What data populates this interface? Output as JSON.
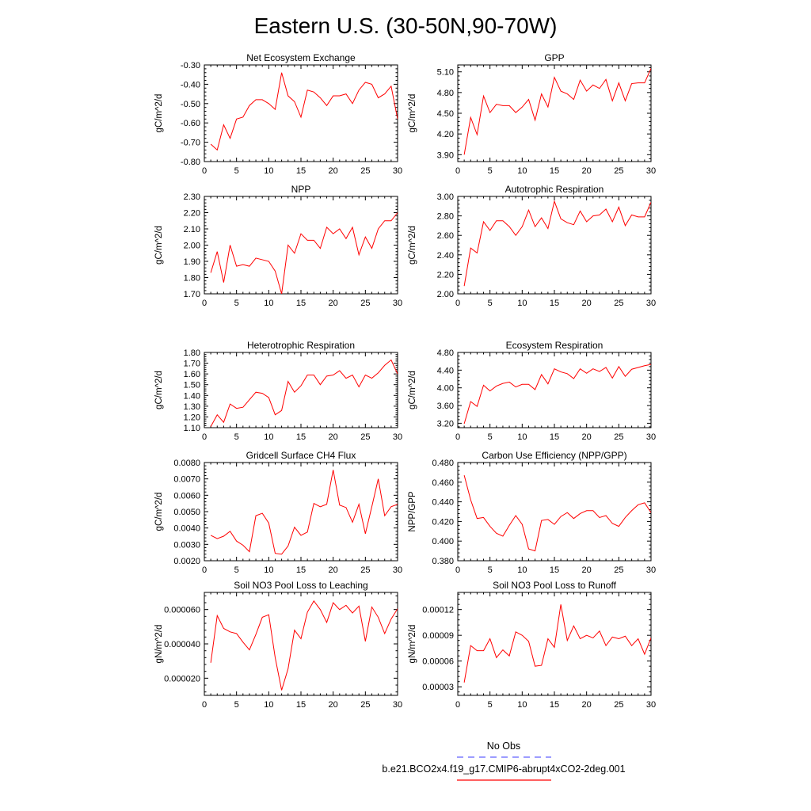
{
  "figure": {
    "title": "Eastern U.S. (30-50N,90-70W)"
  },
  "legend": {
    "obs_label": "No Obs",
    "obs_color": "#6060ff",
    "model_label": "b.e21.BCO2x4.f19_g17.CMIP6-abrupt4xCO2-2deg.001",
    "model_color": "#ff0000"
  },
  "chart_data": [
    {
      "type": "line",
      "title": "Net Ecosystem Exchange",
      "ylabel": "gC/m^2/d",
      "xlim": [
        0,
        30
      ],
      "ylim": [
        -0.8,
        -0.3
      ],
      "xticks": [
        0,
        5,
        10,
        15,
        20,
        25,
        30
      ],
      "yticks": [
        "-0.80",
        "-0.70",
        "-0.60",
        "-0.50",
        "-0.40",
        "-0.30"
      ],
      "series": [
        {
          "values": [
            -0.71,
            -0.74,
            -0.61,
            -0.68,
            -0.58,
            -0.57,
            -0.51,
            -0.48,
            -0.48,
            -0.5,
            -0.53,
            -0.34,
            -0.46,
            -0.49,
            -0.57,
            -0.43,
            -0.44,
            -0.47,
            -0.51,
            -0.46,
            -0.46,
            -0.45,
            -0.5,
            -0.43,
            -0.39,
            -0.4,
            -0.47,
            -0.45,
            -0.41,
            -0.58
          ]
        }
      ]
    },
    {
      "type": "line",
      "title": "GPP",
      "ylabel": "gC/m^2/d",
      "xlim": [
        0,
        30
      ],
      "ylim": [
        3.8,
        5.2
      ],
      "xticks": [
        0,
        5,
        10,
        15,
        20,
        25,
        30
      ],
      "yticks": [
        "3.90",
        "4.20",
        "4.50",
        "4.80",
        "5.10"
      ],
      "series": [
        {
          "values": [
            3.9,
            4.44,
            4.19,
            4.75,
            4.51,
            4.63,
            4.61,
            4.61,
            4.51,
            4.59,
            4.7,
            4.4,
            4.78,
            4.59,
            5.02,
            4.82,
            4.78,
            4.7,
            4.98,
            4.82,
            4.91,
            4.86,
            4.99,
            4.68,
            4.94,
            4.68,
            4.93,
            4.94,
            4.94,
            5.15
          ]
        }
      ]
    },
    {
      "type": "line",
      "title": "NPP",
      "ylabel": "gC/m^2/d",
      "xlim": [
        0,
        30
      ],
      "ylim": [
        1.7,
        2.3
      ],
      "xticks": [
        0,
        5,
        10,
        15,
        20,
        25,
        30
      ],
      "yticks": [
        "1.70",
        "1.80",
        "1.90",
        "2.00",
        "2.10",
        "2.20",
        "2.30"
      ],
      "series": [
        {
          "values": [
            1.83,
            1.96,
            1.77,
            2.0,
            1.87,
            1.88,
            1.87,
            1.92,
            1.91,
            1.9,
            1.84,
            1.7,
            2.0,
            1.95,
            2.07,
            2.03,
            2.03,
            1.98,
            2.11,
            2.07,
            2.1,
            2.04,
            2.11,
            1.94,
            2.05,
            1.98,
            2.1,
            2.15,
            2.15,
            2.2
          ]
        }
      ]
    },
    {
      "type": "line",
      "title": "Autotrophic Respiration",
      "ylabel": "gC/m^2/d",
      "xlim": [
        0,
        30
      ],
      "ylim": [
        2.0,
        3.0
      ],
      "xticks": [
        0,
        5,
        10,
        15,
        20,
        25,
        30
      ],
      "yticks": [
        "2.00",
        "2.20",
        "2.40",
        "2.60",
        "2.80",
        "3.00"
      ],
      "series": [
        {
          "values": [
            2.08,
            2.47,
            2.42,
            2.74,
            2.65,
            2.75,
            2.75,
            2.69,
            2.6,
            2.69,
            2.86,
            2.69,
            2.78,
            2.67,
            2.95,
            2.77,
            2.73,
            2.71,
            2.85,
            2.74,
            2.8,
            2.81,
            2.87,
            2.74,
            2.89,
            2.7,
            2.81,
            2.79,
            2.79,
            2.94
          ]
        }
      ]
    },
    {
      "type": "line",
      "title": "Heterotrophic Respiration",
      "ylabel": "gC/m^2/d",
      "xlim": [
        0,
        30
      ],
      "ylim": [
        1.1,
        1.8
      ],
      "xticks": [
        0,
        5,
        10,
        15,
        20,
        25,
        30
      ],
      "yticks": [
        "1.10",
        "1.20",
        "1.30",
        "1.40",
        "1.50",
        "1.60",
        "1.70",
        "1.80"
      ],
      "series": [
        {
          "values": [
            1.11,
            1.22,
            1.15,
            1.32,
            1.28,
            1.29,
            1.36,
            1.43,
            1.42,
            1.38,
            1.22,
            1.26,
            1.53,
            1.43,
            1.49,
            1.59,
            1.59,
            1.5,
            1.58,
            1.59,
            1.63,
            1.56,
            1.59,
            1.48,
            1.59,
            1.56,
            1.61,
            1.68,
            1.73,
            1.6
          ]
        }
      ]
    },
    {
      "type": "line",
      "title": "Ecosystem Respiration",
      "ylabel": "gC/m^2/d",
      "xlim": [
        0,
        30
      ],
      "ylim": [
        3.1,
        4.8
      ],
      "xticks": [
        0,
        5,
        10,
        15,
        20,
        25,
        30
      ],
      "yticks": [
        "3.20",
        "3.60",
        "4.00",
        "4.40",
        "4.80"
      ],
      "series": [
        {
          "values": [
            3.19,
            3.69,
            3.58,
            4.06,
            3.93,
            4.04,
            4.1,
            4.13,
            4.02,
            4.08,
            4.08,
            3.96,
            4.3,
            4.09,
            4.43,
            4.36,
            4.32,
            4.21,
            4.43,
            4.33,
            4.43,
            4.37,
            4.46,
            4.22,
            4.48,
            4.26,
            4.42,
            4.46,
            4.5,
            4.53
          ]
        }
      ]
    },
    {
      "type": "line",
      "title": "Gridcell Surface CH4 Flux",
      "ylabel": "gC/m^2/d",
      "xlim": [
        0,
        30
      ],
      "ylim": [
        0.002,
        0.008
      ],
      "xticks": [
        0,
        5,
        10,
        15,
        20,
        25,
        30
      ],
      "yticks": [
        "0.0020",
        "0.0030",
        "0.0040",
        "0.0050",
        "0.0060",
        "0.0070",
        "0.0080"
      ],
      "series": [
        {
          "values": [
            0.00355,
            0.00335,
            0.0035,
            0.0038,
            0.0032,
            0.00295,
            0.00255,
            0.00475,
            0.0049,
            0.0043,
            0.00245,
            0.0024,
            0.0029,
            0.00405,
            0.00355,
            0.00375,
            0.0055,
            0.0053,
            0.00545,
            0.00755,
            0.0054,
            0.00525,
            0.00435,
            0.00545,
            0.00365,
            0.0053,
            0.007,
            0.00475,
            0.0053,
            0.00545
          ]
        }
      ]
    },
    {
      "type": "line",
      "title": "Carbon Use Efficiency (NPP/GPP)",
      "ylabel": "NPP/GPP",
      "xlim": [
        0,
        30
      ],
      "ylim": [
        0.38,
        0.48
      ],
      "xticks": [
        0,
        5,
        10,
        15,
        20,
        25,
        30
      ],
      "yticks": [
        "0.380",
        "0.400",
        "0.420",
        "0.440",
        "0.460",
        "0.480"
      ],
      "series": [
        {
          "values": [
            0.467,
            0.442,
            0.423,
            0.424,
            0.415,
            0.408,
            0.405,
            0.416,
            0.426,
            0.417,
            0.392,
            0.39,
            0.421,
            0.422,
            0.417,
            0.425,
            0.429,
            0.423,
            0.428,
            0.431,
            0.431,
            0.424,
            0.426,
            0.418,
            0.415,
            0.424,
            0.431,
            0.437,
            0.439,
            0.429
          ]
        }
      ]
    },
    {
      "type": "line",
      "title": "Soil NO3 Pool Loss to Leaching",
      "ylabel": "gN/m^2/d",
      "xlim": [
        0,
        30
      ],
      "ylim": [
        1e-05,
        7e-05
      ],
      "xticks": [
        0,
        5,
        10,
        15,
        20,
        25,
        30
      ],
      "yticks": [
        "0.000020",
        "0.000040",
        "0.000060"
      ],
      "series": [
        {
          "values": [
            2.9e-05,
            5.65e-05,
            4.9e-05,
            4.7e-05,
            4.6e-05,
            4.1e-05,
            3.65e-05,
            4.55e-05,
            5.55e-05,
            5.7e-05,
            3.2e-05,
            1.3e-05,
            2.55e-05,
            4.8e-05,
            4.3e-05,
            5.85e-05,
            6.5e-05,
            6e-05,
            5.25e-05,
            6.4e-05,
            6e-05,
            6.25e-05,
            5.8e-05,
            6.2e-05,
            4.15e-05,
            6.15e-05,
            5.55e-05,
            4.6e-05,
            5.45e-05,
            6.05e-05
          ]
        }
      ]
    },
    {
      "type": "line",
      "title": "Soil NO3 Pool Loss to Runoff",
      "ylabel": "gN/m^2/d",
      "xlim": [
        0,
        30
      ],
      "ylim": [
        2e-05,
        0.00014
      ],
      "xticks": [
        0,
        5,
        10,
        15,
        20,
        25,
        30
      ],
      "yticks": [
        "0.00003",
        "0.00006",
        "0.00009",
        "0.00012"
      ],
      "series": [
        {
          "values": [
            3.5e-05,
            7.8e-05,
            7.2e-05,
            7.2e-05,
            8.6e-05,
            6.4e-05,
            7.3e-05,
            6.6e-05,
            9.4e-05,
            9e-05,
            8.3e-05,
            5.4e-05,
            5.5e-05,
            8.6e-05,
            7.6e-05,
            0.000126,
            8.4e-05,
            0.000101,
            8.6e-05,
            9e-05,
            8.7e-05,
            9.5e-05,
            7.8e-05,
            8.8e-05,
            8.6e-05,
            8.9e-05,
            7.8e-05,
            8.6e-05,
            6.8e-05,
            8.7e-05
          ]
        }
      ]
    }
  ]
}
